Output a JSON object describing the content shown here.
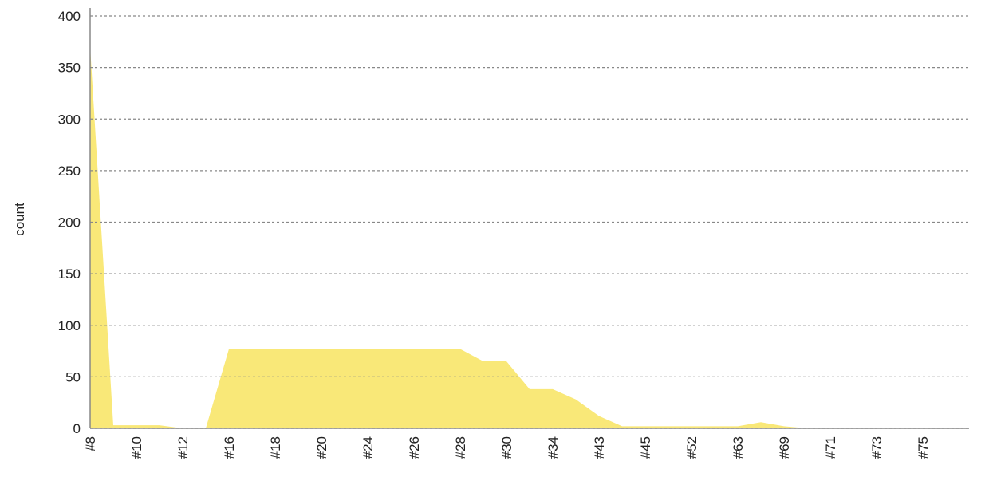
{
  "chart_data": {
    "type": "area",
    "ylabel": "count",
    "categories": [
      "#8",
      null,
      "#10",
      null,
      "#12",
      null,
      "#16",
      null,
      "#18",
      null,
      "#20",
      null,
      "#24",
      null,
      "#26",
      null,
      "#28",
      null,
      "#30",
      null,
      "#34",
      null,
      "#43",
      null,
      "#45",
      null,
      "#52",
      null,
      "#63",
      null,
      "#69",
      null,
      "#71",
      null,
      "#73",
      null,
      "#75",
      null,
      null
    ],
    "values": [
      370,
      3,
      3,
      3,
      0,
      0,
      77,
      77,
      77,
      77,
      77,
      77,
      77,
      77,
      77,
      77,
      77,
      65,
      65,
      38,
      38,
      28,
      12,
      2,
      2,
      2,
      2,
      2,
      2,
      6,
      2,
      0,
      0,
      0,
      0,
      0,
      0,
      0,
      0
    ],
    "color": "#f9e878",
    "ylim": [
      0,
      400
    ],
    "yticks": [
      0,
      50,
      100,
      150,
      200,
      250,
      300,
      350,
      400
    ],
    "grid": true
  }
}
